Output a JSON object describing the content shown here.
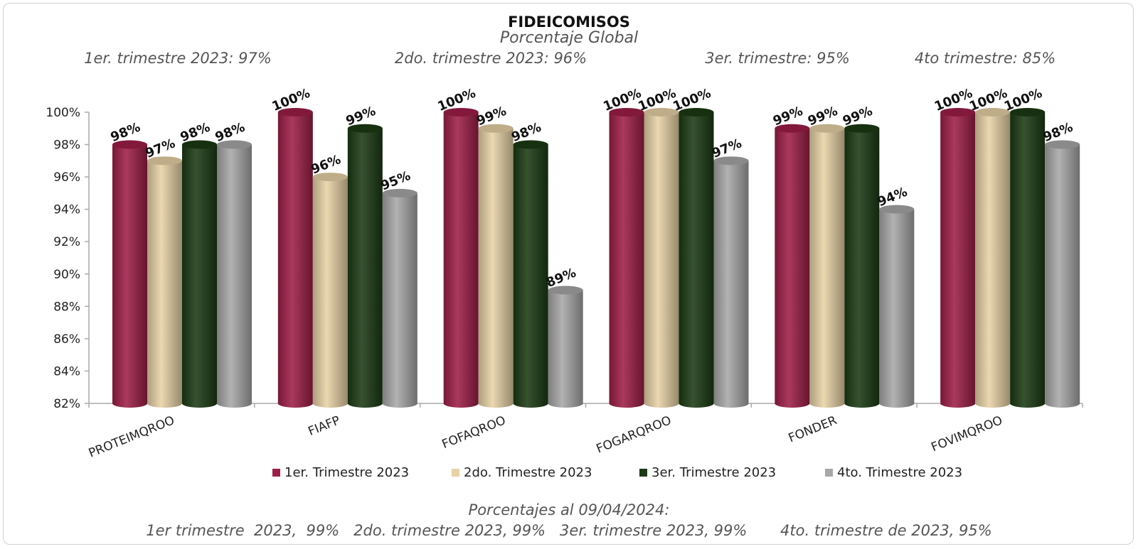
{
  "chart_data": {
    "type": "bar",
    "title": "FIDEICOMISOS",
    "subtitle": "Porcentaje Global",
    "quarter_summaries": [
      "1er. trimestre 2023: 97%",
      "2do. trimestre 2023: 96%",
      "3er. trimestre: 95%",
      "4to trimestre: 85%"
    ],
    "categories": [
      "PROTEIMQROO",
      "FIAFP",
      "FOFAQROO",
      "FOGARQROO",
      "FONDER",
      "FOVIMQROO"
    ],
    "series": [
      {
        "name": "1er. Trimestre 2023",
        "color": "#9e1e48",
        "values": [
          98,
          100,
          100,
          100,
          99,
          100
        ],
        "labels": [
          "98%",
          "100%",
          "100%",
          "100%",
          "99%",
          "100%"
        ]
      },
      {
        "name": "2do. Trimestre 2023",
        "color": "#e8d3a6",
        "values": [
          97,
          96,
          99,
          100,
          99,
          100
        ],
        "labels": [
          "97%",
          "96%",
          "99%",
          "100%",
          "99%",
          "100%"
        ]
      },
      {
        "name": "3er. Trimestre 2023",
        "color": "#1c3a14",
        "values": [
          98,
          99,
          98,
          100,
          99,
          100
        ],
        "labels": [
          "98%",
          "99%",
          "98%",
          "100%",
          "99%",
          "100%"
        ]
      },
      {
        "name": "4to. Trimestre 2023",
        "color": "#a8a8a8",
        "values": [
          98,
          95,
          89,
          97,
          94,
          98
        ],
        "labels": [
          "98%",
          "95%",
          "89%",
          "97%",
          "94%",
          "98%"
        ]
      }
    ],
    "y_ticks": [
      "82%",
      "84%",
      "86%",
      "88%",
      "90%",
      "92%",
      "94%",
      "96%",
      "98%",
      "100%"
    ],
    "ylim": [
      82,
      100
    ],
    "grid": false,
    "legend_position": "bottom",
    "footer": {
      "heading": "Porcentajes al 09/04/2024:",
      "line": "1er trimestre  2023,  99%   2do. trimestre 2023, 99%   3er. trimestre 2023, 99%       4to. trimestre de 2023, 95%"
    }
  }
}
